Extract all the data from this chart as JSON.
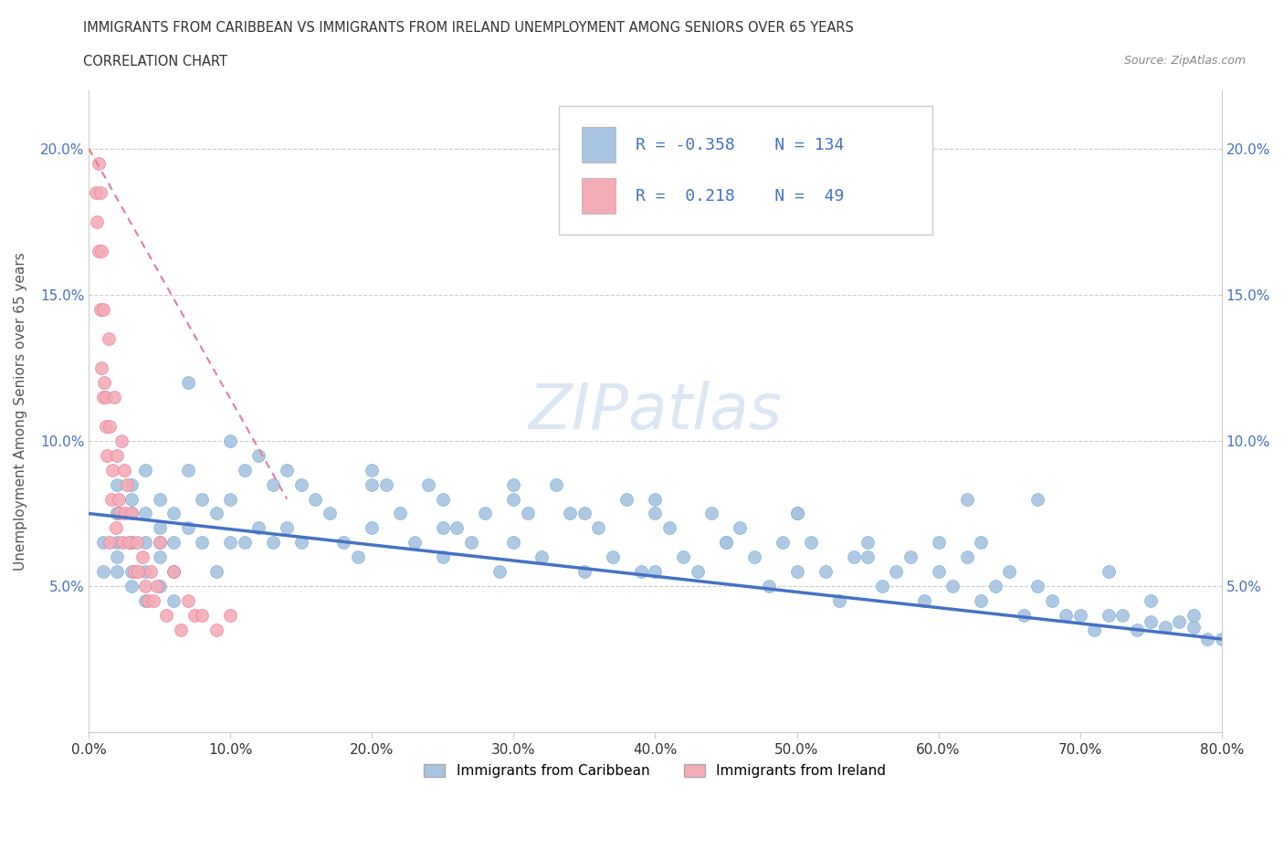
{
  "title_line1": "IMMIGRANTS FROM CARIBBEAN VS IMMIGRANTS FROM IRELAND UNEMPLOYMENT AMONG SENIORS OVER 65 YEARS",
  "title_line2": "CORRELATION CHART",
  "source_text": "Source: ZipAtlas.com",
  "ylabel": "Unemployment Among Seniors over 65 years",
  "xlim": [
    0.0,
    0.8
  ],
  "ylim": [
    0.0,
    0.22
  ],
  "xticks": [
    0.0,
    0.1,
    0.2,
    0.3,
    0.4,
    0.5,
    0.6,
    0.7,
    0.8
  ],
  "xticklabels": [
    "0.0%",
    "10.0%",
    "20.0%",
    "30.0%",
    "40.0%",
    "50.0%",
    "60.0%",
    "70.0%",
    "80.0%"
  ],
  "yticks": [
    0.0,
    0.05,
    0.1,
    0.15,
    0.2
  ],
  "yticklabels": [
    "",
    "5.0%",
    "10.0%",
    "15.0%",
    "20.0%"
  ],
  "blue_color": "#a8c4e0",
  "blue_edge_color": "#7aafd4",
  "blue_line_color": "#4472c4",
  "pink_color": "#f4acb7",
  "pink_edge_color": "#e87b9a",
  "pink_line_color": "#e87b9a",
  "R_blue": -0.358,
  "N_blue": 134,
  "R_pink": 0.218,
  "N_pink": 49,
  "watermark": "ZIPatlas",
  "watermark_color": "#c8d8e8",
  "legend1": "Immigrants from Caribbean",
  "legend2": "Immigrants from Ireland",
  "blue_scatter_x": [
    0.01,
    0.01,
    0.02,
    0.02,
    0.02,
    0.02,
    0.02,
    0.02,
    0.03,
    0.03,
    0.03,
    0.03,
    0.03,
    0.03,
    0.03,
    0.04,
    0.04,
    0.04,
    0.04,
    0.04,
    0.05,
    0.05,
    0.05,
    0.05,
    0.05,
    0.06,
    0.06,
    0.06,
    0.06,
    0.07,
    0.07,
    0.07,
    0.08,
    0.08,
    0.09,
    0.09,
    0.1,
    0.1,
    0.1,
    0.11,
    0.11,
    0.12,
    0.12,
    0.13,
    0.13,
    0.14,
    0.14,
    0.15,
    0.15,
    0.16,
    0.17,
    0.18,
    0.19,
    0.2,
    0.2,
    0.21,
    0.22,
    0.23,
    0.24,
    0.25,
    0.25,
    0.26,
    0.27,
    0.28,
    0.29,
    0.3,
    0.3,
    0.31,
    0.32,
    0.33,
    0.34,
    0.35,
    0.36,
    0.37,
    0.38,
    0.39,
    0.4,
    0.4,
    0.41,
    0.42,
    0.43,
    0.44,
    0.45,
    0.46,
    0.47,
    0.48,
    0.49,
    0.5,
    0.5,
    0.51,
    0.52,
    0.53,
    0.54,
    0.55,
    0.56,
    0.57,
    0.58,
    0.59,
    0.6,
    0.61,
    0.62,
    0.63,
    0.64,
    0.65,
    0.66,
    0.67,
    0.68,
    0.69,
    0.7,
    0.71,
    0.72,
    0.73,
    0.74,
    0.75,
    0.76,
    0.77,
    0.78,
    0.79,
    0.8,
    0.62,
    0.63,
    0.67,
    0.72,
    0.75,
    0.78,
    0.2,
    0.25,
    0.3,
    0.35,
    0.4,
    0.45,
    0.5,
    0.55,
    0.6
  ],
  "blue_scatter_y": [
    0.065,
    0.055,
    0.085,
    0.075,
    0.065,
    0.055,
    0.075,
    0.06,
    0.085,
    0.075,
    0.065,
    0.055,
    0.08,
    0.065,
    0.05,
    0.09,
    0.075,
    0.065,
    0.055,
    0.045,
    0.08,
    0.07,
    0.06,
    0.05,
    0.065,
    0.075,
    0.065,
    0.055,
    0.045,
    0.12,
    0.09,
    0.07,
    0.08,
    0.065,
    0.075,
    0.055,
    0.1,
    0.08,
    0.065,
    0.09,
    0.065,
    0.095,
    0.07,
    0.085,
    0.065,
    0.09,
    0.07,
    0.085,
    0.065,
    0.08,
    0.075,
    0.065,
    0.06,
    0.09,
    0.07,
    0.085,
    0.075,
    0.065,
    0.085,
    0.08,
    0.06,
    0.07,
    0.065,
    0.075,
    0.055,
    0.085,
    0.065,
    0.075,
    0.06,
    0.085,
    0.075,
    0.055,
    0.07,
    0.06,
    0.08,
    0.055,
    0.075,
    0.055,
    0.07,
    0.06,
    0.055,
    0.075,
    0.065,
    0.07,
    0.06,
    0.05,
    0.065,
    0.075,
    0.055,
    0.065,
    0.055,
    0.045,
    0.06,
    0.065,
    0.05,
    0.055,
    0.06,
    0.045,
    0.055,
    0.05,
    0.06,
    0.045,
    0.05,
    0.055,
    0.04,
    0.05,
    0.045,
    0.04,
    0.04,
    0.035,
    0.04,
    0.04,
    0.035,
    0.038,
    0.036,
    0.038,
    0.036,
    0.032,
    0.032,
    0.08,
    0.065,
    0.08,
    0.055,
    0.045,
    0.04,
    0.085,
    0.07,
    0.08,
    0.075,
    0.08,
    0.065,
    0.075,
    0.06,
    0.065
  ],
  "pink_scatter_x": [
    0.005,
    0.006,
    0.007,
    0.007,
    0.008,
    0.008,
    0.009,
    0.009,
    0.01,
    0.01,
    0.011,
    0.012,
    0.012,
    0.013,
    0.014,
    0.015,
    0.015,
    0.016,
    0.017,
    0.018,
    0.019,
    0.02,
    0.021,
    0.022,
    0.023,
    0.024,
    0.025,
    0.026,
    0.027,
    0.028,
    0.03,
    0.032,
    0.034,
    0.035,
    0.038,
    0.04,
    0.042,
    0.044,
    0.046,
    0.048,
    0.05,
    0.055,
    0.06,
    0.065,
    0.07,
    0.075,
    0.08,
    0.09,
    0.1
  ],
  "pink_scatter_y": [
    0.185,
    0.175,
    0.195,
    0.165,
    0.185,
    0.145,
    0.165,
    0.125,
    0.145,
    0.115,
    0.12,
    0.105,
    0.115,
    0.095,
    0.135,
    0.105,
    0.065,
    0.08,
    0.09,
    0.115,
    0.07,
    0.095,
    0.08,
    0.075,
    0.1,
    0.065,
    0.09,
    0.075,
    0.085,
    0.065,
    0.075,
    0.055,
    0.065,
    0.055,
    0.06,
    0.05,
    0.045,
    0.055,
    0.045,
    0.05,
    0.065,
    0.04,
    0.055,
    0.035,
    0.045,
    0.04,
    0.04,
    0.035,
    0.04
  ],
  "blue_trend_x": [
    0.0,
    0.8
  ],
  "blue_trend_y": [
    0.075,
    0.032
  ],
  "pink_trend_x": [
    0.0,
    0.14
  ],
  "pink_trend_y": [
    0.2,
    0.08
  ]
}
